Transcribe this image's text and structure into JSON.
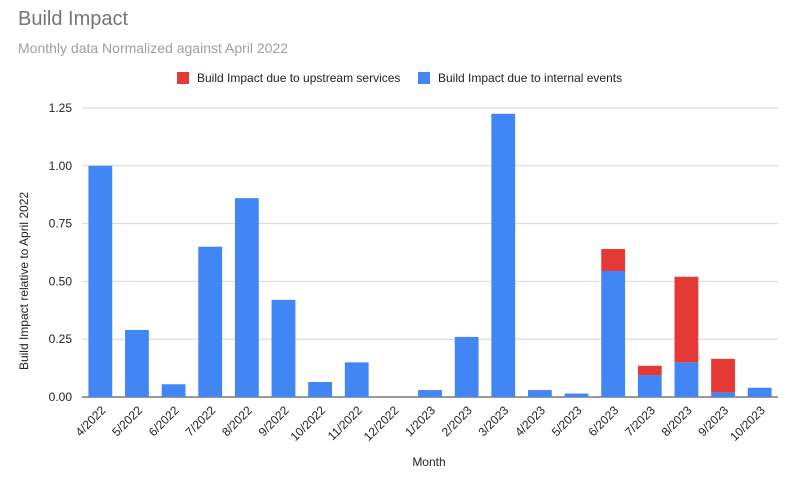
{
  "chart_data": {
    "type": "bar",
    "stacked": true,
    "title": "Build Impact",
    "subtitle": "Monthly data Normalized against April 2022",
    "xlabel": "Month",
    "ylabel": "Build Impact relative to April 2022",
    "ylim": [
      0,
      1.25
    ],
    "yticks": [
      "0.00",
      "0.25",
      "0.50",
      "0.75",
      "1.00",
      "1.25"
    ],
    "yticks_values": [
      0,
      0.25,
      0.5,
      0.75,
      1.0,
      1.25
    ],
    "grid": true,
    "legend_position": "top",
    "categories": [
      "4/2022",
      "5/2022",
      "6/2022",
      "7/2022",
      "8/2022",
      "9/2022",
      "10/2022",
      "11/2022",
      "12/2022",
      "1/2023",
      "2/2023",
      "3/2023",
      "4/2023",
      "5/2023",
      "6/2023",
      "7/2023",
      "8/2023",
      "9/2023",
      "10/2023"
    ],
    "series": [
      {
        "name": "Build Impact due to internal events",
        "color": "#4285f4",
        "values": [
          1.0,
          0.29,
          0.055,
          0.65,
          0.86,
          0.42,
          0.065,
          0.15,
          0,
          0.03,
          0.26,
          1.225,
          0.03,
          0.015,
          0.545,
          0.095,
          0.15,
          0.02,
          0.04
        ]
      },
      {
        "name": "Build Impact due to upstream services",
        "color": "#e53935",
        "values": [
          0,
          0,
          0,
          0,
          0,
          0,
          0,
          0,
          0,
          0,
          0,
          0,
          0,
          0,
          0.095,
          0.04,
          0.37,
          0.145,
          0
        ]
      }
    ],
    "legend": [
      {
        "name": "Build Impact due to upstream services",
        "color": "#e53935"
      },
      {
        "name": "Build Impact due to internal events",
        "color": "#4285f4"
      }
    ]
  }
}
